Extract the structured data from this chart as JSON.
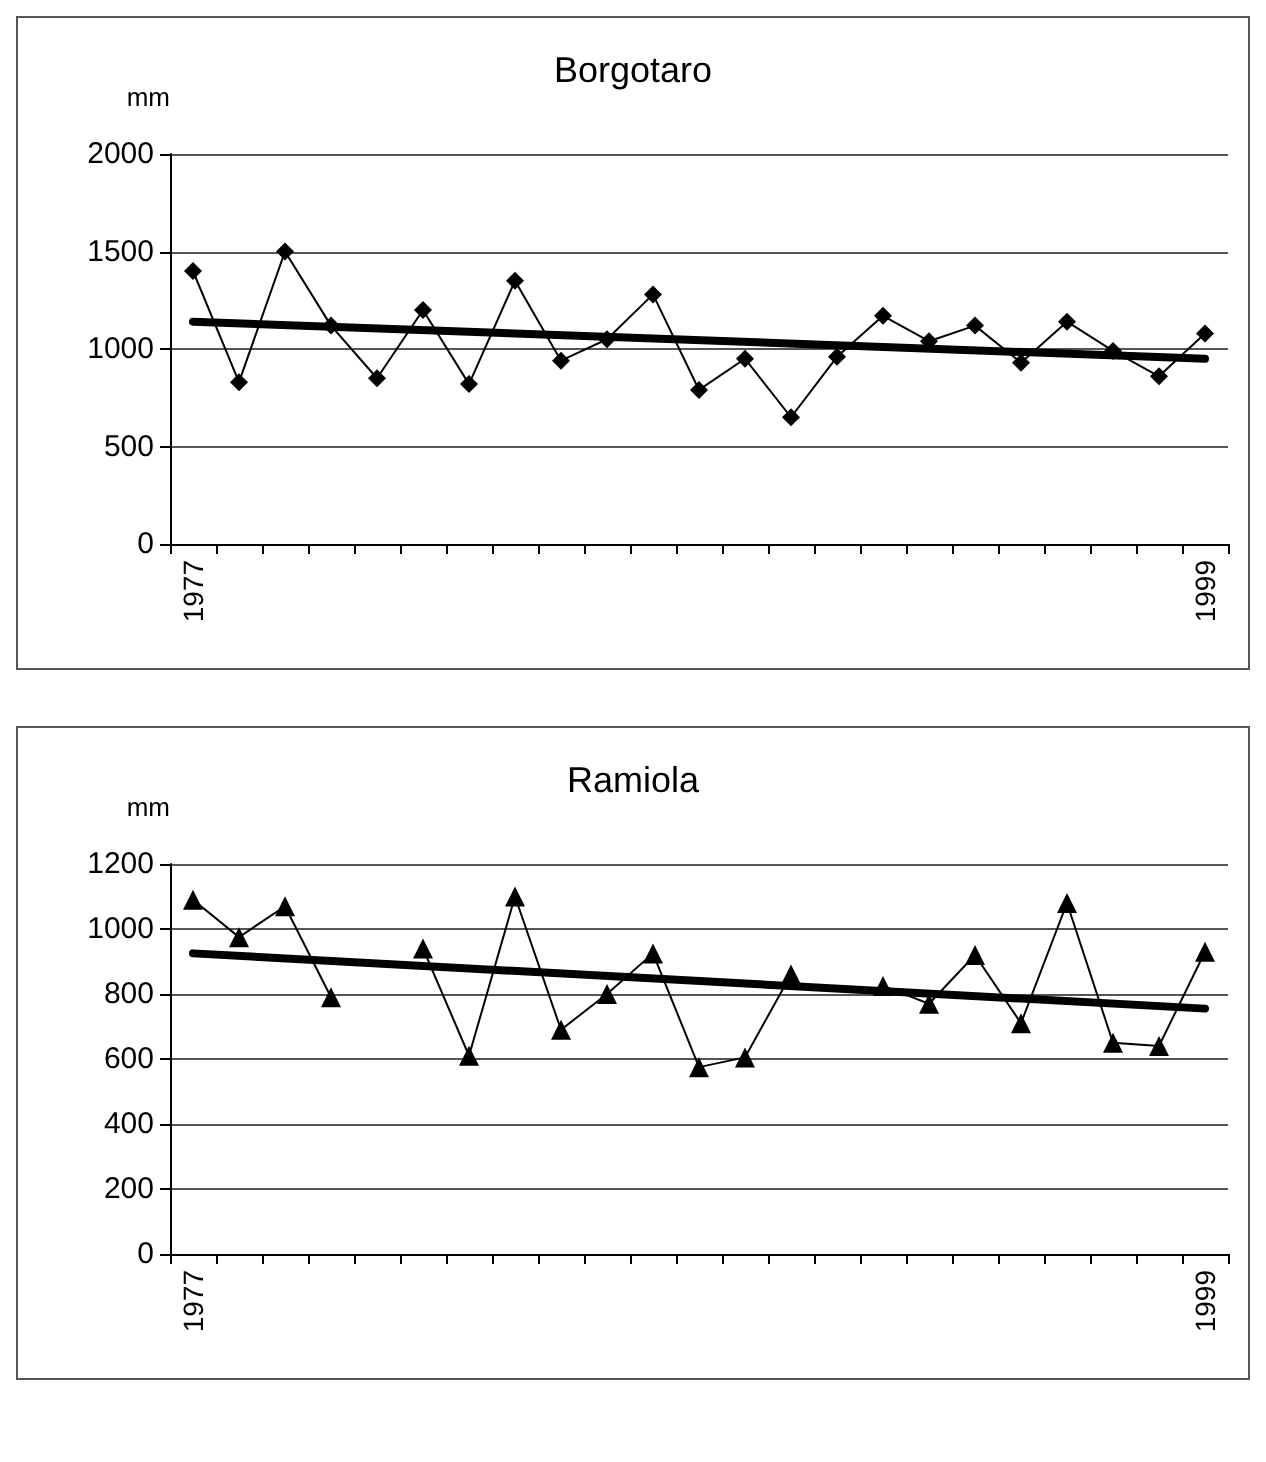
{
  "chart_data": [
    {
      "type": "line",
      "title": "Borgotaro",
      "ylabel": "mm",
      "categories": [
        "1977",
        null,
        null,
        null,
        null,
        null,
        null,
        null,
        null,
        null,
        null,
        null,
        null,
        null,
        null,
        null,
        null,
        null,
        null,
        null,
        null,
        null,
        "1999"
      ],
      "ylim": [
        0,
        2000
      ],
      "yticks": [
        0,
        500,
        1000,
        1500,
        2000
      ],
      "grid": "y",
      "marker": "diamond",
      "series": [
        {
          "color": "#000000",
          "values": [
            1400,
            830,
            1500,
            1120,
            850,
            1200,
            820,
            1350,
            940,
            1050,
            1280,
            790,
            950,
            650,
            960,
            1170,
            1040,
            1120,
            930,
            1140,
            990,
            860,
            1080
          ]
        },
        {
          "type": "line",
          "color": "#000000",
          "marker": "none",
          "values": [
            1140,
            null,
            null,
            null,
            null,
            null,
            null,
            null,
            null,
            null,
            null,
            null,
            null,
            null,
            null,
            null,
            null,
            null,
            null,
            null,
            null,
            null,
            950
          ]
        }
      ]
    },
    {
      "type": "line",
      "title": "Ramiola",
      "ylabel": "mm",
      "categories": [
        "1977",
        null,
        null,
        null,
        null,
        null,
        null,
        null,
        null,
        null,
        null,
        null,
        null,
        null,
        null,
        null,
        null,
        null,
        null,
        null,
        null,
        null,
        "1999"
      ],
      "ylim": [
        0,
        1200
      ],
      "yticks": [
        0,
        200,
        400,
        600,
        800,
        1000,
        1200
      ],
      "grid": "y",
      "marker": "triangle",
      "series": [
        {
          "color": "#000000",
          "values": [
            1090,
            975,
            1070,
            790,
            null,
            940,
            610,
            1100,
            690,
            800,
            925,
            575,
            605,
            860,
            null,
            825,
            770,
            920,
            710,
            1080,
            650,
            640,
            930
          ]
        },
        {
          "type": "line",
          "color": "#000000",
          "marker": "none",
          "values": [
            925,
            null,
            null,
            null,
            null,
            null,
            null,
            null,
            null,
            null,
            null,
            null,
            null,
            null,
            null,
            null,
            null,
            null,
            null,
            null,
            null,
            null,
            755
          ]
        }
      ]
    }
  ]
}
